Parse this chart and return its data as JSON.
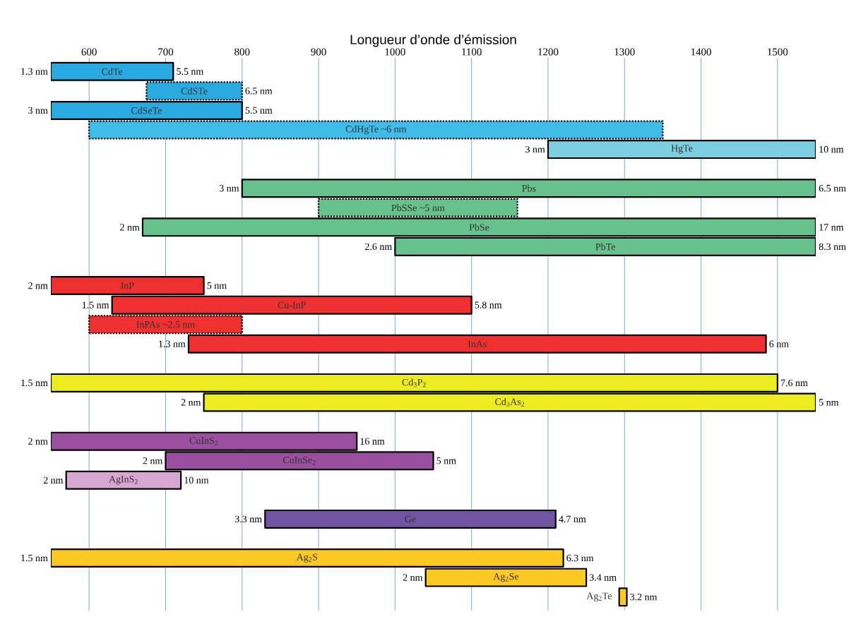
{
  "chart_data": {
    "type": "bar",
    "orientation": "horizontal",
    "title": "Longueur d’onde d’émission",
    "categories": [
      "CdTe",
      "CdSTe",
      "CdSeTe",
      "CdHgTe ~6 nm",
      "HgTe",
      null,
      "Pbs",
      "PbSSe ~5 nm",
      "PbSe",
      "PbTe",
      null,
      "InP",
      "Cu-InP",
      "InPAs ~2.5 nm",
      "InAs",
      null,
      "Cd$_{3}$P$_{2}$",
      "Cd$_{3}$As$_{2}$",
      null,
      "CuInS$_{2}$",
      "CuInSe$_{2}$",
      "AgInS$_{2}$",
      null,
      "Ge",
      null,
      "Ag$_{2}$S",
      "Ag$_{2}$Se",
      "Ag$_{2}$Te"
    ],
    "series": [
      {
        "line_style": "solid",
        "base": [
          550,
          null,
          550,
          null,
          1200,
          null,
          800,
          null,
          670,
          1000,
          null,
          550,
          630,
          null,
          730,
          null,
          550,
          750,
          null,
          550,
          700,
          570,
          null,
          830,
          null,
          550,
          1040,
          1293
        ],
        "values": [
          160,
          null,
          250,
          null,
          350,
          null,
          750,
          null,
          880,
          550,
          null,
          200,
          470,
          null,
          755,
          null,
          950,
          800,
          null,
          400,
          350,
          150,
          null,
          380,
          null,
          670,
          210,
          10
        ],
        "colors": [
          "#29abe2",
          null,
          "#29abe2",
          null,
          "#7ccfe0",
          null,
          "#66c18c",
          null,
          "#66c18c",
          "#66c18c",
          null,
          "#ee3030",
          "#ee3030",
          null,
          "#ee3030",
          null,
          "#ecec20",
          "#ecec20",
          null,
          "#9b4f9f",
          "#9b4f9f",
          "#d8a6d2",
          null,
          "#7254a3",
          null,
          "#fcc922",
          "#fcc922",
          "#fcc922"
        ]
      },
      {
        "line_style": "dotted",
        "base": [
          null,
          675,
          null,
          600,
          null,
          null,
          null,
          900,
          null,
          null,
          null,
          null,
          null,
          600,
          null,
          null,
          null,
          null,
          null,
          null,
          null,
          null,
          null,
          null,
          null,
          null,
          null,
          null
        ],
        "values": [
          null,
          125,
          null,
          750,
          null,
          null,
          null,
          260,
          null,
          null,
          null,
          null,
          null,
          200,
          null,
          null,
          null,
          null,
          null,
          null,
          null,
          null,
          null,
          null,
          null,
          null,
          null,
          null
        ],
        "colors": [
          null,
          "#29abe2",
          null,
          "#3fbde8",
          null,
          null,
          null,
          "#66c18c",
          null,
          null,
          null,
          null,
          null,
          "#ee3030",
          null,
          null,
          null,
          null,
          null,
          null,
          null,
          null,
          null,
          null,
          null,
          null,
          null,
          null
        ]
      }
    ],
    "xlim": [
      550,
      1550
    ],
    "xticks": [
      600,
      700,
      800,
      900,
      1000,
      1100,
      1200,
      1300,
      1400,
      1500
    ],
    "grid": "x",
    "annotations": [
      {
        "text": "1.3 nm",
        "x": 550,
        "y": "CdTe"
      },
      {
        "text": "5.5 nm",
        "x": 710,
        "y": "CdTe"
      },
      {
        "text": "6.5 nm",
        "x": 800,
        "y": "CdSTe"
      },
      {
        "text": "3 nm",
        "x": 550,
        "y": "CdSeTe"
      },
      {
        "text": "5.5 nm",
        "x": 800,
        "y": "CdSeTe"
      },
      {
        "text": "3 nm",
        "x": 1200,
        "y": "HgTe"
      },
      {
        "text": "10 nm",
        "x": 1550,
        "y": "HgTe"
      },
      {
        "text": "3 nm",
        "x": 800,
        "y": "Pbs"
      },
      {
        "text": "6.5 nm",
        "x": 1550,
        "y": "Pbs"
      },
      {
        "text": "2 nm",
        "x": 670,
        "y": "PbSe"
      },
      {
        "text": "17 nm",
        "x": 1550,
        "y": "PbSe"
      },
      {
        "text": "2.6 nm",
        "x": 1000,
        "y": "PbTe"
      },
      {
        "text": "8.3 nm",
        "x": 1550,
        "y": "PbTe"
      },
      {
        "text": "2 nm",
        "x": 550,
        "y": "InP"
      },
      {
        "text": "5 nm",
        "x": 750,
        "y": "InP"
      },
      {
        "text": "1.5 nm",
        "x": 630,
        "y": "Cu-InP"
      },
      {
        "text": "5.8 nm",
        "x": 1100,
        "y": "Cu-InP"
      },
      {
        "text": "1.3 nm",
        "x": 730,
        "y": "InAs"
      },
      {
        "text": "6 nm",
        "x": 1485,
        "y": "InAs"
      },
      {
        "text": "1.5 nm",
        "x": 550,
        "y": "Cd$_{3}$P$_{2}$"
      },
      {
        "text": "7.6 nm",
        "x": 1500,
        "y": "Cd$_{3}$P$_{2}$"
      },
      {
        "text": "2 nm",
        "x": 750,
        "y": "Cd$_{3}$As$_{2}$"
      },
      {
        "text": "5 nm",
        "x": 1550,
        "y": "Cd$_{3}$As$_{2}$"
      },
      {
        "text": "2 nm",
        "x": 550,
        "y": "CuInS$_{2}$"
      },
      {
        "text": "16 nm",
        "x": 950,
        "y": "CuInS$_{2}$"
      },
      {
        "text": "2 nm",
        "x": 700,
        "y": "CuInSe$_{2}$"
      },
      {
        "text": "5 nm",
        "x": 1050,
        "y": "CuInSe$_{2}$"
      },
      {
        "text": "2 nm",
        "x": 570,
        "y": "AgInS$_{2}$"
      },
      {
        "text": "10 nm",
        "x": 720,
        "y": "AgInS$_{2}$"
      },
      {
        "text": "3.3 nm",
        "x": 830,
        "y": "Ge"
      },
      {
        "text": "4.7 nm",
        "x": 1210,
        "y": "Ge"
      },
      {
        "text": "1.5 nm",
        "x": 550,
        "y": "Ag$_{2}$S"
      },
      {
        "text": "6.3 nm",
        "x": 1220,
        "y": "Ag$_{2}$S"
      },
      {
        "text": "2 nm",
        "x": 1040,
        "y": "Ag$_{2}$Se"
      },
      {
        "text": "3.4 nm",
        "x": 1250,
        "y": "Ag$_{2}$Se"
      },
      {
        "text": "3.2 nm",
        "x": 1303,
        "y": "Ag$_{2}$Te"
      }
    ]
  }
}
